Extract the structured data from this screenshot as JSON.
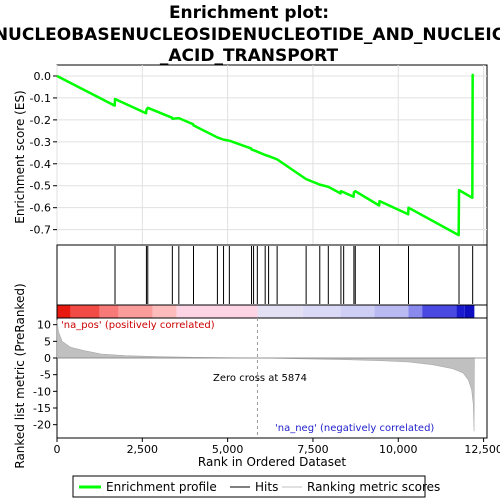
{
  "chart_data": {
    "type": "line",
    "title_lines": [
      "Enrichment plot:",
      "NUCLEOBASENUCLEOSIDENUCLEOTIDE_AND_NUCLEIC",
      "_ACID_TRANSPORT"
    ],
    "xlabel": "Rank in Ordered Dataset",
    "ylabel_top": "Enrichment score (ES)",
    "ylabel_bottom": "Ranked list metric (PreRanked)",
    "xlim": [
      0,
      12600
    ],
    "x_ticks": [
      0,
      2500,
      5000,
      7500,
      10000,
      12500
    ],
    "x_tick_labels": [
      "0",
      "2,500",
      "5,000",
      "7,500",
      "10,000",
      "12,500"
    ],
    "es_ylim": [
      -0.77,
      0.05
    ],
    "es_ticks": [
      0.0,
      -0.1,
      -0.2,
      -0.3,
      -0.4,
      -0.5,
      -0.6,
      -0.7
    ],
    "es_tick_labels": [
      "0.0",
      "-0.1",
      "-0.2",
      "-0.3",
      "-0.4",
      "-0.5",
      "-0.6",
      "-0.7"
    ],
    "metric_ylim": [
      -24,
      12
    ],
    "metric_ticks": [
      10,
      5,
      0,
      -5,
      -10,
      -15,
      -20
    ],
    "metric_tick_labels": [
      "10",
      "5",
      "0",
      "-5",
      "-10",
      "-15",
      "-20"
    ],
    "hits": [
      1700,
      2620,
      2660,
      3380,
      3570,
      4000,
      4700,
      4880,
      5050,
      5700,
      5760,
      5870,
      6100,
      6200,
      6450,
      7300,
      7700,
      7950,
      8320,
      8400,
      8700,
      8740,
      9450,
      10300,
      11780,
      12180
    ],
    "es_points": [
      [
        0,
        0.0
      ],
      [
        1690,
        -0.135
      ],
      [
        1700,
        -0.105
      ],
      [
        2610,
        -0.17
      ],
      [
        2620,
        -0.155
      ],
      [
        2660,
        -0.145
      ],
      [
        3370,
        -0.19
      ],
      [
        3380,
        -0.195
      ],
      [
        3570,
        -0.192
      ],
      [
        3990,
        -0.22
      ],
      [
        4000,
        -0.225
      ],
      [
        4700,
        -0.28
      ],
      [
        4880,
        -0.29
      ],
      [
        5050,
        -0.295
      ],
      [
        5690,
        -0.33
      ],
      [
        5700,
        -0.335
      ],
      [
        5760,
        -0.338
      ],
      [
        5870,
        -0.345
      ],
      [
        6100,
        -0.36
      ],
      [
        6200,
        -0.365
      ],
      [
        6450,
        -0.38
      ],
      [
        7300,
        -0.47
      ],
      [
        7700,
        -0.495
      ],
      [
        7950,
        -0.505
      ],
      [
        8310,
        -0.535
      ],
      [
        8320,
        -0.525
      ],
      [
        8400,
        -0.53
      ],
      [
        8690,
        -0.55
      ],
      [
        8700,
        -0.53
      ],
      [
        8740,
        -0.525
      ],
      [
        9440,
        -0.59
      ],
      [
        9450,
        -0.57
      ],
      [
        10290,
        -0.63
      ],
      [
        10300,
        -0.6
      ],
      [
        11770,
        -0.725
      ],
      [
        11780,
        -0.52
      ],
      [
        12170,
        -0.555
      ],
      [
        12180,
        0.005
      ],
      [
        12200,
        0.0
      ]
    ],
    "metric_profile": [
      [
        0,
        11.5
      ],
      [
        40,
        8.0
      ],
      [
        150,
        5.0
      ],
      [
        400,
        3.2
      ],
      [
        800,
        2.2
      ],
      [
        1300,
        1.2
      ],
      [
        2000,
        0.7
      ],
      [
        3000,
        0.4
      ],
      [
        4000,
        0.2
      ],
      [
        5000,
        0.1
      ],
      [
        5874,
        0.0
      ],
      [
        7000,
        -0.2
      ],
      [
        8500,
        -0.5
      ],
      [
        9500,
        -0.8
      ],
      [
        10300,
        -1.2
      ],
      [
        11000,
        -2.0
      ],
      [
        11600,
        -3.2
      ],
      [
        11900,
        -4.5
      ],
      [
        12050,
        -6.5
      ],
      [
        12150,
        -9.5
      ],
      [
        12200,
        -14.0
      ],
      [
        12220,
        -22.0
      ],
      [
        12230,
        0.0
      ]
    ],
    "heatmap_bands": [
      {
        "from": 0,
        "to": 400,
        "color": "#e8190f"
      },
      {
        "from": 400,
        "to": 1250,
        "color": "#f24a45"
      },
      {
        "from": 1250,
        "to": 1800,
        "color": "#f77a78"
      },
      {
        "from": 1800,
        "to": 2800,
        "color": "#fa9c9a"
      },
      {
        "from": 2800,
        "to": 3500,
        "color": "#fcbcbc"
      },
      {
        "from": 3500,
        "to": 5874,
        "color": "#fdd4e4"
      },
      {
        "from": 5874,
        "to": 7200,
        "color": "#e4e0f4"
      },
      {
        "from": 7200,
        "to": 8300,
        "color": "#dadaf6"
      },
      {
        "from": 8300,
        "to": 9300,
        "color": "#cfcff5"
      },
      {
        "from": 9300,
        "to": 10300,
        "color": "#babaf2"
      },
      {
        "from": 10300,
        "to": 10700,
        "color": "#8a8aee"
      },
      {
        "from": 10700,
        "to": 11700,
        "color": "#4a4ae2"
      },
      {
        "from": 11700,
        "to": 11950,
        "color": "#1a1acf"
      },
      {
        "from": 11950,
        "to": 12230,
        "color": "#0e0ec0"
      }
    ],
    "zero_cross_label": "Zero cross at 5874",
    "zero_cross_x": 5874,
    "na_pos_label": "'na_pos' (positively correlated)",
    "na_neg_label": "'na_neg' (negatively correlated)",
    "legend": [
      "Enrichment profile",
      "Hits",
      "Ranking metric scores"
    ],
    "colors": {
      "es": "#00ff00",
      "hits": "#000000",
      "metric": "#c0c0c0",
      "pos": "#cc0000",
      "neg": "#1f1fcc"
    }
  }
}
